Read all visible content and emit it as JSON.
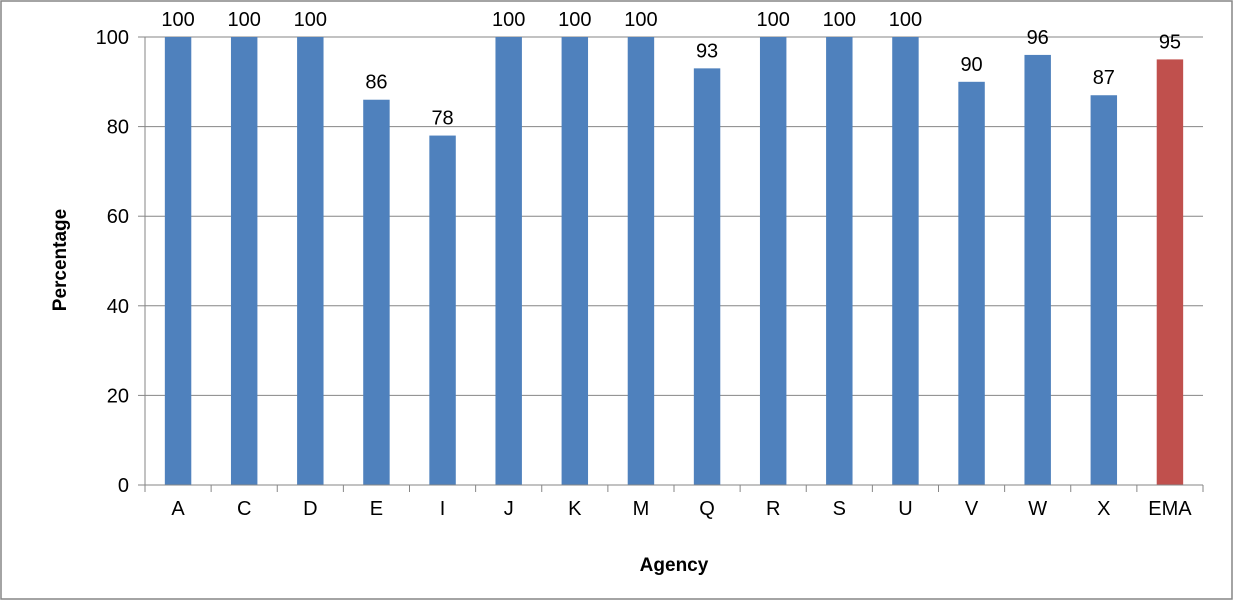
{
  "chart_data": {
    "type": "bar",
    "categories": [
      "A",
      "C",
      "D",
      "E",
      "I",
      "J",
      "K",
      "M",
      "Q",
      "R",
      "S",
      "U",
      "V",
      "W",
      "X",
      "EMA"
    ],
    "values": [
      100,
      100,
      100,
      86,
      78,
      100,
      100,
      100,
      93,
      100,
      100,
      100,
      90,
      96,
      87,
      95
    ],
    "data_labels": [
      "100",
      "100",
      "100",
      "86",
      "78",
      "100",
      "100",
      "100",
      "93",
      "100",
      "100",
      "100",
      "90",
      "96",
      "87",
      "95"
    ],
    "title": "",
    "xlabel": "Agency",
    "ylabel": "Percentage",
    "ylim": [
      0,
      100
    ],
    "yticks": [
      "0",
      "20",
      "40",
      "60",
      "80",
      "100"
    ],
    "grid": true,
    "legend": "none",
    "colors": {
      "default_bar": "#4F81BD",
      "highlight_bar": "#C0504D",
      "gridline": "#868686",
      "axis": "#868686",
      "frame": "#868686"
    },
    "highlight_category": "EMA"
  }
}
